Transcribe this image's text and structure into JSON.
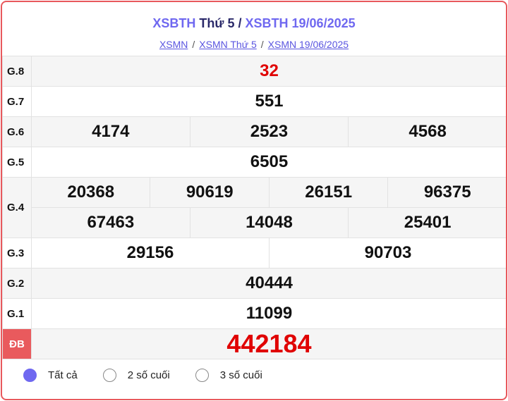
{
  "header": {
    "title_part1": "XSBTH",
    "title_part2": "Thứ 5",
    "title_sep": "/",
    "title_part3": "XSBTH 19/06/2025",
    "breadcrumbs": [
      "XSMN",
      "XSMN Thứ 5",
      "XSMN 19/06/2025"
    ],
    "breadcrumb_sep": "/"
  },
  "prizes": {
    "g8": {
      "label": "G.8",
      "values": [
        "32"
      ]
    },
    "g7": {
      "label": "G.7",
      "values": [
        "551"
      ]
    },
    "g6": {
      "label": "G.6",
      "values": [
        "4174",
        "2523",
        "4568"
      ]
    },
    "g5": {
      "label": "G.5",
      "values": [
        "6505"
      ]
    },
    "g4": {
      "label": "G.4",
      "values": [
        "20368",
        "90619",
        "26151",
        "96375",
        "67463",
        "14048",
        "25401"
      ]
    },
    "g3": {
      "label": "G.3",
      "values": [
        "29156",
        "90703"
      ]
    },
    "g2": {
      "label": "G.2",
      "values": [
        "40444"
      ]
    },
    "g1": {
      "label": "G.1",
      "values": [
        "11099"
      ]
    },
    "db": {
      "label": "ĐB",
      "values": [
        "442184"
      ]
    }
  },
  "filters": {
    "options": [
      "Tất cả",
      "2 số cuối",
      "3 số cuối"
    ],
    "selected": "Tất cả"
  },
  "colors": {
    "accent": "#6f68f0",
    "special": "#e00000",
    "border": "#e8585c"
  }
}
